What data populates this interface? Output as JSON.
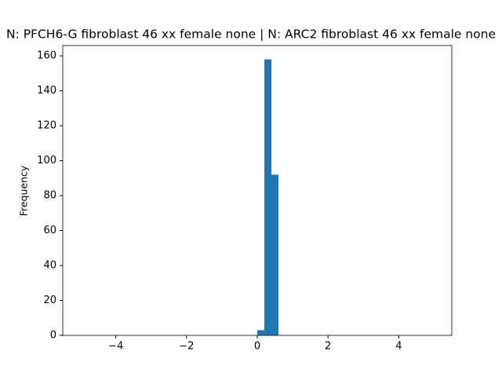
{
  "chart_data": {
    "type": "histogram",
    "title": "N: PFCH6-G fibroblast 46 xx female none | N: ARC2 fibroblast 46 xx female none",
    "ylabel": "Frequency",
    "bins": [
      0,
      0.2,
      0.4,
      0.6
    ],
    "values": [
      3,
      158,
      92
    ],
    "color": "#1f77b4",
    "xlim": [
      -5.5,
      5.5
    ],
    "xticks": [
      {
        "value": -4,
        "label": "−4"
      },
      {
        "value": -2,
        "label": "−2"
      },
      0,
      2,
      4
    ],
    "ylim": [
      0,
      165.9
    ],
    "yticks": [
      0,
      20,
      40,
      60,
      80,
      100,
      120,
      140,
      160
    ]
  }
}
